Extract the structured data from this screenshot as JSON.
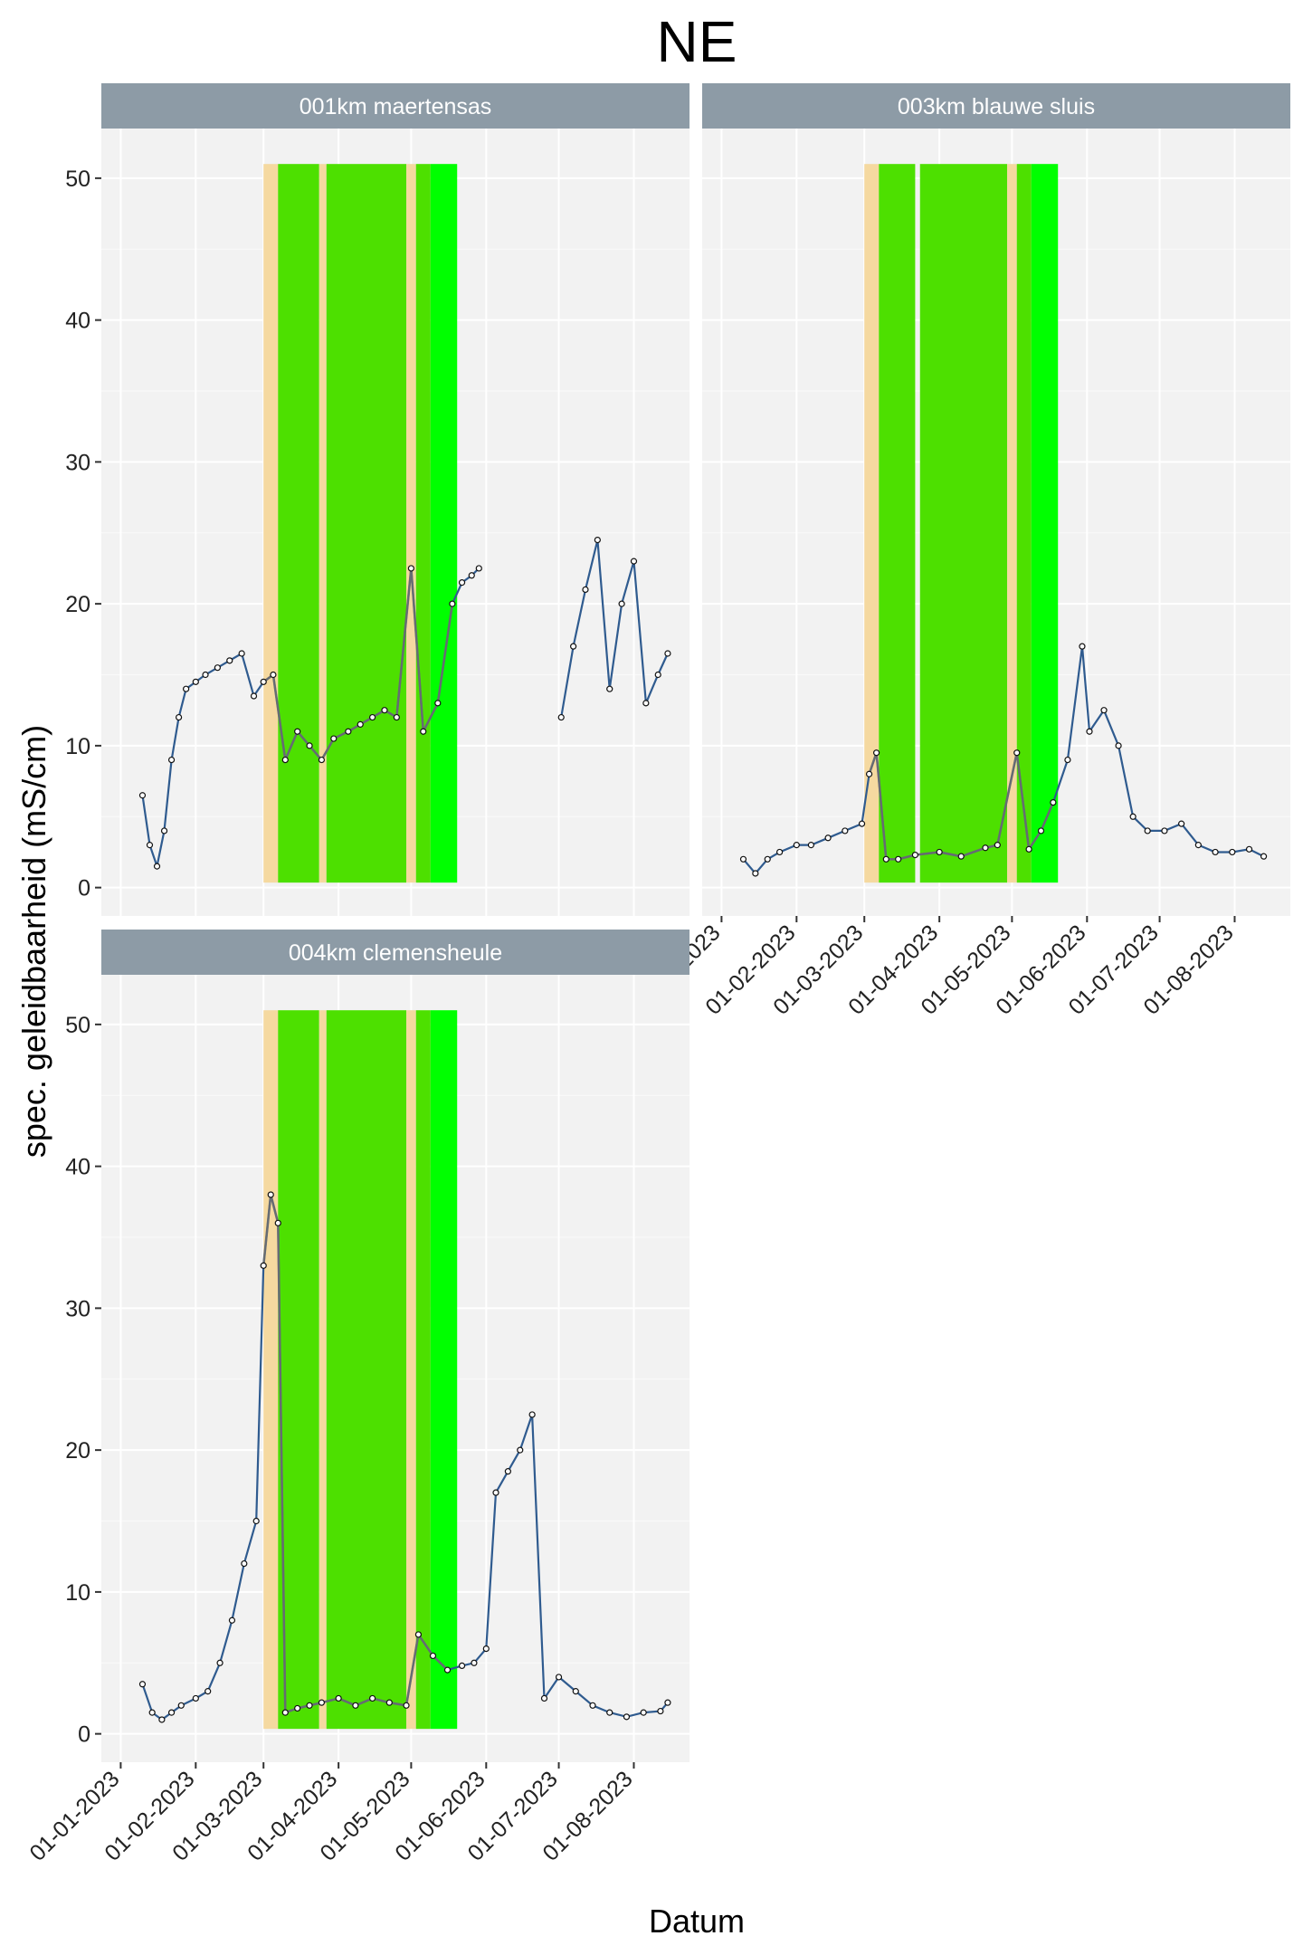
{
  "chart_data": {
    "type": "line",
    "title": "NE",
    "xlabel": "Datum",
    "ylabel": "spec. geleidbaarheid (mS/cm)",
    "x_range": [
      "2022-12-24",
      "2023-08-24"
    ],
    "ylim": [
      -2,
      53.5
    ],
    "y_ticks": [
      0,
      10,
      20,
      30,
      40,
      50
    ],
    "x_ticks": [
      "01-01-2023",
      "01-02-2023",
      "01-03-2023",
      "01-04-2023",
      "01-05-2023",
      "01-06-2023",
      "01-07-2023",
      "01-08-2023"
    ],
    "x_tick_dates": [
      "2023-01-01",
      "2023-02-01",
      "2023-03-01",
      "2023-04-01",
      "2023-05-01",
      "2023-06-01",
      "2023-07-01",
      "2023-08-01"
    ],
    "grid": true,
    "colors": {
      "panel_bg": "#f2f2f2",
      "grid_major": "#ffffff",
      "strip_bg": "#8d9ba6",
      "strip_text": "#ffffff",
      "line": "#2f5b8f",
      "line_shaded": "#6e6e6e",
      "points": "#111111",
      "band_orange": "#f5d9a0",
      "band_green": "#4de000",
      "band_green_bright": "#00ff00"
    },
    "panels": [
      {
        "name": "001km maertensas",
        "bands": [
          {
            "from": "2023-02-29",
            "to": "2023-03-07",
            "fill": "orange"
          },
          {
            "from": "2023-03-07",
            "to": "2023-03-24",
            "fill": "green"
          },
          {
            "from": "2023-03-24",
            "to": "2023-03-27",
            "fill": "orange"
          },
          {
            "from": "2023-03-27",
            "to": "2023-04-29",
            "fill": "green"
          },
          {
            "from": "2023-04-29",
            "to": "2023-05-03",
            "fill": "orange"
          },
          {
            "from": "2023-05-03",
            "to": "2023-05-09",
            "fill": "green"
          },
          {
            "from": "2023-05-09",
            "to": "2023-05-20",
            "fill": "green_bright"
          }
        ],
        "series": [
          {
            "x": [
              "2023-01-10",
              "2023-01-13",
              "2023-01-16",
              "2023-01-19",
              "2023-01-22",
              "2023-01-25",
              "2023-01-28",
              "2023-02-01",
              "2023-02-05",
              "2023-02-10",
              "2023-02-15",
              "2023-02-20",
              "2023-02-25",
              "2023-03-01",
              "2023-03-05",
              "2023-03-10",
              "2023-03-15",
              "2023-03-20",
              "2023-03-25",
              "2023-03-30",
              "2023-04-05",
              "2023-04-10",
              "2023-04-15",
              "2023-04-20",
              "2023-04-25",
              "2023-05-01",
              "2023-05-06",
              "2023-05-12",
              "2023-05-18",
              "2023-05-22",
              "2023-05-26",
              "2023-05-29"
            ],
            "y": [
              6.5,
              3,
              1.5,
              4,
              9,
              12,
              14,
              14.5,
              15,
              15.5,
              16,
              16.5,
              13.5,
              14.5,
              15,
              9,
              11,
              10,
              9,
              10.5,
              11,
              11.5,
              12,
              12.5,
              12,
              22.5,
              11,
              13,
              20,
              21.5,
              22,
              22.5
            ]
          },
          {
            "x": [
              "2023-07-02",
              "2023-07-07",
              "2023-07-12",
              "2023-07-17",
              "2023-07-22",
              "2023-07-27",
              "2023-08-01",
              "2023-08-06",
              "2023-08-11",
              "2023-08-15"
            ],
            "y": [
              12,
              17,
              21,
              24.5,
              14,
              20,
              23,
              13,
              15,
              16.5
            ]
          }
        ]
      },
      {
        "name": "003km blauwe sluis",
        "bands": [
          {
            "from": "2023-02-29",
            "to": "2023-03-07",
            "fill": "orange"
          },
          {
            "from": "2023-03-07",
            "to": "2023-03-22",
            "fill": "green"
          },
          {
            "from": "2023-03-24",
            "to": "2023-04-29",
            "fill": "green"
          },
          {
            "from": "2023-04-29",
            "to": "2023-05-03",
            "fill": "orange"
          },
          {
            "from": "2023-05-03",
            "to": "2023-05-09",
            "fill": "green"
          },
          {
            "from": "2023-05-09",
            "to": "2023-05-20",
            "fill": "green_bright"
          }
        ],
        "series": [
          {
            "x": [
              "2023-01-10",
              "2023-01-15",
              "2023-01-20",
              "2023-01-25",
              "2023-02-01",
              "2023-02-07",
              "2023-02-14",
              "2023-02-21",
              "2023-02-28",
              "2023-03-03",
              "2023-03-06",
              "2023-03-10",
              "2023-03-15",
              "2023-03-22",
              "2023-04-01",
              "2023-04-10",
              "2023-04-20",
              "2023-04-25",
              "2023-05-03",
              "2023-05-08",
              "2023-05-13",
              "2023-05-18",
              "2023-05-24",
              "2023-05-30",
              "2023-06-02",
              "2023-06-08",
              "2023-06-14",
              "2023-06-20",
              "2023-06-26",
              "2023-07-03",
              "2023-07-10",
              "2023-07-17",
              "2023-07-24",
              "2023-07-31",
              "2023-08-07",
              "2023-08-13"
            ],
            "y": [
              2,
              1,
              2,
              2.5,
              3,
              3,
              3.5,
              4,
              4.5,
              8,
              9.5,
              2,
              2,
              2.3,
              2.5,
              2.2,
              2.8,
              3,
              9.5,
              2.7,
              4,
              6,
              9,
              17,
              11,
              12.5,
              10,
              5,
              4,
              4,
              4.5,
              3,
              2.5,
              2.5,
              2.7,
              2.2
            ]
          }
        ]
      },
      {
        "name": "004km clemensheule",
        "bands": [
          {
            "from": "2023-02-29",
            "to": "2023-03-07",
            "fill": "orange"
          },
          {
            "from": "2023-03-07",
            "to": "2023-03-24",
            "fill": "green"
          },
          {
            "from": "2023-03-24",
            "to": "2023-03-27",
            "fill": "orange"
          },
          {
            "from": "2023-03-27",
            "to": "2023-04-29",
            "fill": "green"
          },
          {
            "from": "2023-04-29",
            "to": "2023-05-03",
            "fill": "orange"
          },
          {
            "from": "2023-05-03",
            "to": "2023-05-09",
            "fill": "green"
          },
          {
            "from": "2023-05-09",
            "to": "2023-05-20",
            "fill": "green_bright"
          }
        ],
        "series": [
          {
            "x": [
              "2023-01-10",
              "2023-01-14",
              "2023-01-18",
              "2023-01-22",
              "2023-01-26",
              "2023-02-01",
              "2023-02-06",
              "2023-02-11",
              "2023-02-16",
              "2023-02-21",
              "2023-02-26",
              "2023-03-01",
              "2023-03-04",
              "2023-03-07",
              "2023-03-10",
              "2023-03-15",
              "2023-03-20",
              "2023-03-25",
              "2023-04-01",
              "2023-04-08",
              "2023-04-15",
              "2023-04-22",
              "2023-04-29",
              "2023-05-04",
              "2023-05-10",
              "2023-05-16",
              "2023-05-22",
              "2023-05-27",
              "2023-06-01",
              "2023-06-05",
              "2023-06-10",
              "2023-06-15",
              "2023-06-20",
              "2023-06-25",
              "2023-07-01",
              "2023-07-08",
              "2023-07-15",
              "2023-07-22",
              "2023-07-29",
              "2023-08-05",
              "2023-08-12",
              "2023-08-15"
            ],
            "y": [
              3.5,
              1.5,
              1,
              1.5,
              2,
              2.5,
              3,
              5,
              8,
              12,
              15,
              33,
              38,
              36,
              1.5,
              1.8,
              2,
              2.2,
              2.5,
              2,
              2.5,
              2.2,
              2,
              7,
              5.5,
              4.5,
              4.8,
              5,
              6,
              17,
              18.5,
              20,
              22.5,
              2.5,
              4,
              3,
              2,
              1.5,
              1.2,
              1.5,
              1.6,
              2.2
            ]
          }
        ]
      }
    ]
  }
}
